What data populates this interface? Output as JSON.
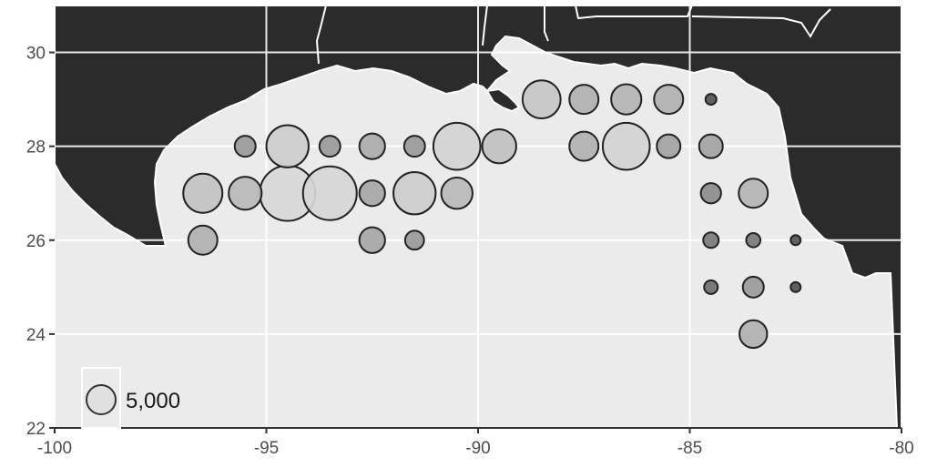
{
  "chart_data": {
    "type": "scatter",
    "title": "",
    "xlabel": "",
    "ylabel": "",
    "xlim": [
      -100,
      -80
    ],
    "ylim": [
      22,
      31
    ],
    "x_ticks": [
      "-100",
      "-95",
      "-90",
      "-85",
      "-80"
    ],
    "y_ticks": [
      "22",
      "24",
      "26",
      "28",
      "30"
    ],
    "grid": true,
    "legend": {
      "label": "5,000",
      "reference_value": 5000,
      "placement": "bottom-left"
    },
    "points": [
      {
        "x": -96.5,
        "y": 26,
        "count": 5000,
        "shade": "#b0b0b0"
      },
      {
        "x": -96.5,
        "y": 27,
        "count": 9000,
        "shade": "#c2c2c2"
      },
      {
        "x": -95.5,
        "y": 27,
        "count": 6400,
        "shade": "#b8b8b8"
      },
      {
        "x": -95.5,
        "y": 28,
        "count": 2600,
        "shade": "#999999"
      },
      {
        "x": -94.5,
        "y": 28,
        "count": 10500,
        "shade": "#cccccc"
      },
      {
        "x": -94.5,
        "y": 27,
        "count": 18000,
        "shade": "#d8d8d8"
      },
      {
        "x": -93.5,
        "y": 27,
        "count": 17000,
        "shade": "#d6d6d6"
      },
      {
        "x": -93.5,
        "y": 28,
        "count": 2600,
        "shade": "#999999"
      },
      {
        "x": -92.5,
        "y": 28,
        "count": 3900,
        "shade": "#aaaaaa"
      },
      {
        "x": -92.5,
        "y": 27,
        "count": 3900,
        "shade": "#a6a6a6"
      },
      {
        "x": -92.5,
        "y": 26,
        "count": 3900,
        "shade": "#a6a6a6"
      },
      {
        "x": -91.5,
        "y": 28,
        "count": 2600,
        "shade": "#999999"
      },
      {
        "x": -91.5,
        "y": 27,
        "count": 10500,
        "shade": "#cccccc"
      },
      {
        "x": -91.5,
        "y": 26,
        "count": 2100,
        "shade": "#999999"
      },
      {
        "x": -90.5,
        "y": 28,
        "count": 13000,
        "shade": "#d2d2d2"
      },
      {
        "x": -90.5,
        "y": 27,
        "count": 5800,
        "shade": "#b8b8b8"
      },
      {
        "x": -89.5,
        "y": 28,
        "count": 6800,
        "shade": "#c0c0c0"
      },
      {
        "x": -88.5,
        "y": 29,
        "count": 8500,
        "shade": "#c6c6c6"
      },
      {
        "x": -87.5,
        "y": 29,
        "count": 5000,
        "shade": "#b0b0b0"
      },
      {
        "x": -87.5,
        "y": 28,
        "count": 5000,
        "shade": "#b0b0b0"
      },
      {
        "x": -86.5,
        "y": 29,
        "count": 5400,
        "shade": "#b4b4b4"
      },
      {
        "x": -86.5,
        "y": 28,
        "count": 13000,
        "shade": "#d2d2d2"
      },
      {
        "x": -85.5,
        "y": 29,
        "count": 5000,
        "shade": "#b0b0b0"
      },
      {
        "x": -85.5,
        "y": 28,
        "count": 3300,
        "shade": "#a2a2a2"
      },
      {
        "x": -84.5,
        "y": 29,
        "count": 700,
        "shade": "#555555"
      },
      {
        "x": -84.5,
        "y": 28,
        "count": 3300,
        "shade": "#a2a2a2"
      },
      {
        "x": -84.5,
        "y": 27,
        "count": 2400,
        "shade": "#8c8c8c"
      },
      {
        "x": -84.5,
        "y": 26,
        "count": 1400,
        "shade": "#7a7a7a"
      },
      {
        "x": -84.5,
        "y": 25,
        "count": 1100,
        "shade": "#707070"
      },
      {
        "x": -83.5,
        "y": 27,
        "count": 5000,
        "shade": "#b4b4b4"
      },
      {
        "x": -83.5,
        "y": 26,
        "count": 1200,
        "shade": "#7a7a7a"
      },
      {
        "x": -83.5,
        "y": 25,
        "count": 2600,
        "shade": "#9a9a9a"
      },
      {
        "x": -83.5,
        "y": 24,
        "count": 4500,
        "shade": "#b0b0b0"
      },
      {
        "x": -82.5,
        "y": 26,
        "count": 600,
        "shade": "#555555"
      },
      {
        "x": -82.5,
        "y": 25,
        "count": 600,
        "shade": "#555555"
      }
    ]
  },
  "colors": {
    "panel_background": "#ebebeb",
    "land": "#2b2b2b",
    "grid": "#ffffff",
    "bubble_outline": "#222222",
    "legend_bubble_fill": "#e0e0e0"
  }
}
